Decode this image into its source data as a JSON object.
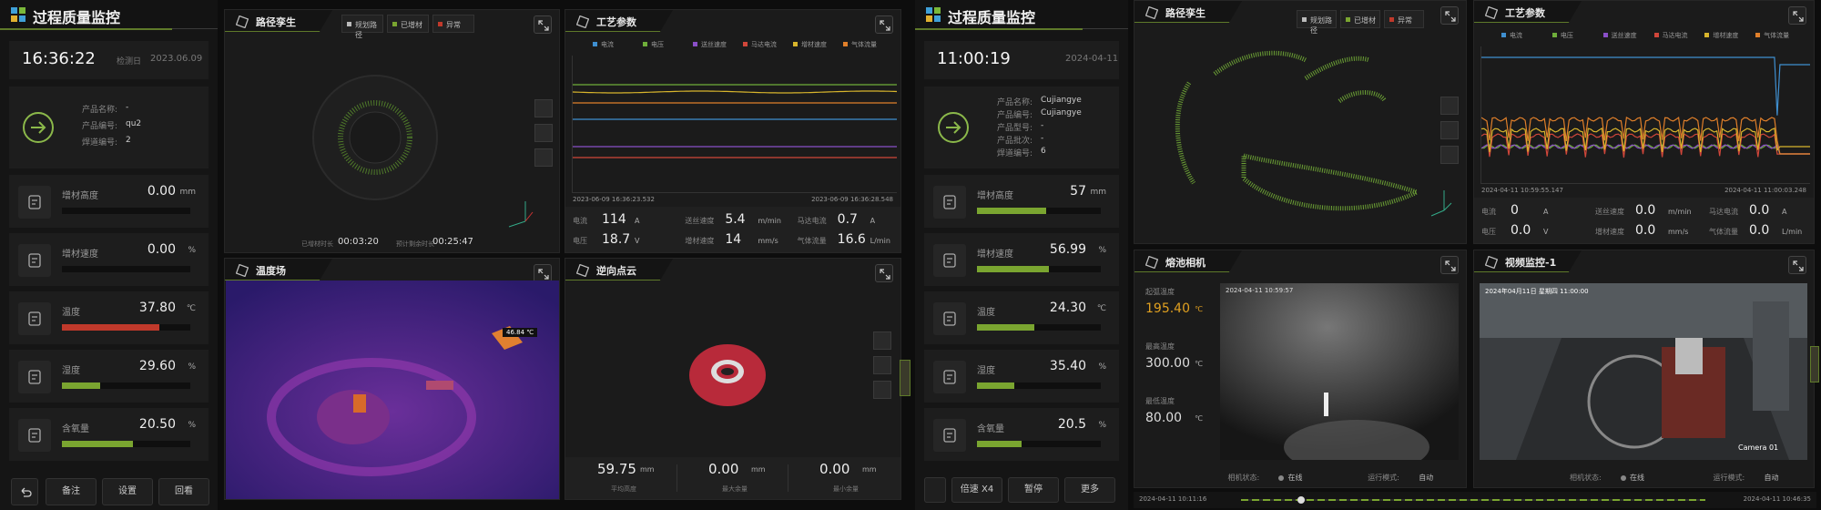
{
  "left_screen": {
    "header": {
      "title": "过程质量监控"
    },
    "time": "16:36:22",
    "date_label": "检测日",
    "date": "2023.06.09",
    "product": [
      {
        "label": "产品名称:",
        "value": "-"
      },
      {
        "label": "产品编号:",
        "value": "qu2"
      },
      {
        "label": "焊道编号:",
        "value": "2"
      }
    ],
    "metrics": [
      {
        "label": "增材高度",
        "value": "0.00",
        "unit": "mm"
      },
      {
        "label": "增材速度",
        "value": "0.00",
        "unit": "%"
      },
      {
        "label": "温度",
        "value": "37.80",
        "unit": "℃"
      },
      {
        "label": "湿度",
        "value": "29.60",
        "unit": "%"
      },
      {
        "label": "含氧量",
        "value": "20.50",
        "unit": "%"
      }
    ],
    "buttons": [
      "备注",
      "设置",
      "回看"
    ],
    "path_panel": {
      "title": "路径孪生",
      "legend": [
        "规划路径",
        "已增材",
        "异常"
      ],
      "stats": [
        {
          "label": "已增材时长",
          "value": "00:03:20"
        },
        {
          "label": "预计剩余时长",
          "value": "00:25:47"
        }
      ]
    },
    "process_panel": {
      "title": "工艺参数",
      "legend": [
        {
          "name": "电流",
          "color": "#3f8fd0"
        },
        {
          "name": "电压",
          "color": "#6fae3a"
        },
        {
          "name": "送丝速度",
          "color": "#8a4fc8"
        },
        {
          "name": "马达电流",
          "color": "#d0463a"
        },
        {
          "name": "增材速度",
          "color": "#d8b52c"
        },
        {
          "name": "气体流量",
          "color": "#e07f2a"
        }
      ],
      "time_start": "2023-06-09 16:36:23.532",
      "time_end": "2023-06-09 16:36:28.548",
      "readings": [
        {
          "label": "电流",
          "value": "114",
          "unit": "A"
        },
        {
          "label": "送丝速度",
          "value": "5.4",
          "unit": "m/min"
        },
        {
          "label": "马达电流",
          "value": "0.7",
          "unit": "A"
        },
        {
          "label": "电压",
          "value": "18.7",
          "unit": "V"
        },
        {
          "label": "增材速度",
          "value": "14",
          "unit": "mm/s"
        },
        {
          "label": "气体流量",
          "value": "16.6",
          "unit": "L/min"
        }
      ]
    },
    "thermal_panel": {
      "title": "温度场",
      "max_temp": "46.84 ℃"
    },
    "cloud_panel": {
      "title": "逆向点云",
      "stats": [
        {
          "value": "59.75",
          "unit": "mm",
          "label": "平均高度"
        },
        {
          "value": "0.00",
          "unit": "mm",
          "label": "最大余量"
        },
        {
          "value": "0.00",
          "unit": "mm",
          "label": "最小余量"
        }
      ]
    }
  },
  "right_screen": {
    "header": {
      "title": "过程质量监控"
    },
    "time": "11:00:19",
    "date": "2024-04-11",
    "product": [
      {
        "label": "产品名称:",
        "value": "Cujiangye"
      },
      {
        "label": "产品编号:",
        "value": "Cujiangye"
      },
      {
        "label": "产品型号:",
        "value": "-"
      },
      {
        "label": "产品批次:",
        "value": "-"
      },
      {
        "label": "焊道编号:",
        "value": "6"
      }
    ],
    "metrics": [
      {
        "label": "增材高度",
        "value": "57",
        "unit": "mm"
      },
      {
        "label": "增材速度",
        "value": "56.99",
        "unit": "%"
      },
      {
        "label": "温度",
        "value": "24.30",
        "unit": "℃"
      },
      {
        "label": "湿度",
        "value": "35.40",
        "unit": "%"
      },
      {
        "label": "含氧量",
        "value": "20.5",
        "unit": "%"
      }
    ],
    "buttons": [
      "倍速 X4",
      "暂停",
      "更多"
    ],
    "path_panel": {
      "title": "路径孪生",
      "legend": [
        "规划路径",
        "已增材",
        "异常"
      ]
    },
    "process_panel": {
      "title": "工艺参数",
      "legend": [
        {
          "name": "电流",
          "color": "#3f8fd0"
        },
        {
          "name": "电压",
          "color": "#6fae3a"
        },
        {
          "name": "送丝速度",
          "color": "#8a4fc8"
        },
        {
          "name": "马达电流",
          "color": "#d0463a"
        },
        {
          "name": "增材速度",
          "color": "#d8b52c"
        },
        {
          "name": "气体流量",
          "color": "#e07f2a"
        }
      ],
      "time_start": "2024-04-11 10:59:55.147",
      "time_end": "2024-04-11 11:00:03.248",
      "readings": [
        {
          "label": "电流",
          "value": "0",
          "unit": "A"
        },
        {
          "label": "送丝速度",
          "value": "0.0",
          "unit": "m/min"
        },
        {
          "label": "马达电流",
          "value": "0.0",
          "unit": "A"
        },
        {
          "label": "电压",
          "value": "0.0",
          "unit": "V"
        },
        {
          "label": "增材速度",
          "value": "0.0",
          "unit": "mm/s"
        },
        {
          "label": "气体流量",
          "value": "0.0",
          "unit": "L/min"
        }
      ]
    },
    "melt_panel": {
      "title": "熔池相机",
      "temps": [
        {
          "label": "起弧温度",
          "value": "195.40",
          "unit": "℃"
        },
        {
          "label": "最高温度",
          "value": "300.00",
          "unit": "℃"
        },
        {
          "label": "最低温度",
          "value": "80.00",
          "unit": "℃"
        }
      ],
      "timestamp": "2024-04-11 10:59:57",
      "status_label": "相机状态:",
      "status": "在线",
      "mode_label": "运行模式:",
      "mode": "自动"
    },
    "video_panel": {
      "title": "视频监控-1",
      "timestamp": "2024年04月11日 星期四 11:00:00",
      "camera": "Camera 01",
      "status_label": "相机状态:",
      "status": "在线",
      "mode_label": "运行模式:",
      "mode": "自动"
    },
    "timeline": {
      "start": "2024-04-11 10:11:16",
      "end": "2024-04-11 10:46:35"
    }
  }
}
